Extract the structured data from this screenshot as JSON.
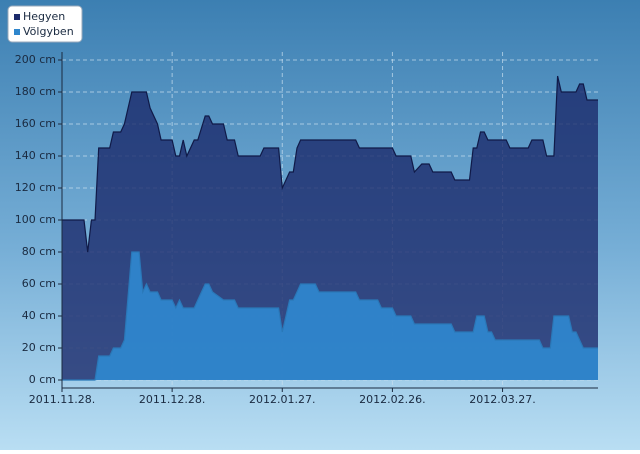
{
  "chart_data": {
    "type": "area",
    "x": [
      "2011.11.28.",
      "2011.12.04.",
      "2011.12.05.",
      "2011.12.06.",
      "2011.12.07.",
      "2011.12.08.",
      "2011.12.11.",
      "2011.12.12.",
      "2011.12.14.",
      "2011.12.15.",
      "2011.12.17.",
      "2011.12.19.",
      "2011.12.20.",
      "2011.12.21.",
      "2011.12.22.",
      "2011.12.24.",
      "2011.12.25.",
      "2011.12.28.",
      "2011.12.29.",
      "2011.12.30.",
      "2011.12.31.",
      "2012.01.01.",
      "2012.01.03.",
      "2012.01.04.",
      "2012.01.06.",
      "2012.01.07.",
      "2012.01.08.",
      "2012.01.11.",
      "2012.01.12.",
      "2012.01.14.",
      "2012.01.15.",
      "2012.01.21.",
      "2012.01.22.",
      "2012.01.26.",
      "2012.01.27.",
      "2012.01.29.",
      "2012.01.30.",
      "2012.01.31.",
      "2012.02.01.",
      "2012.02.05.",
      "2012.02.06.",
      "2012.02.16.",
      "2012.02.17.",
      "2012.02.22.",
      "2012.02.23.",
      "2012.02.26.",
      "2012.02.27.",
      "2012.03.02.",
      "2012.03.03.",
      "2012.03.05.",
      "2012.03.07.",
      "2012.03.08.",
      "2012.03.13.",
      "2012.03.14.",
      "2012.03.18.",
      "2012.03.19.",
      "2012.03.20.",
      "2012.03.21.",
      "2012.03.22.",
      "2012.03.23.",
      "2012.03.24.",
      "2012.03.25.",
      "2012.03.28.",
      "2012.03.29.",
      "2012.04.03.",
      "2012.04.04.",
      "2012.04.06.",
      "2012.04.07.",
      "2012.04.08.",
      "2012.04.09.",
      "2012.04.10.",
      "2012.04.11.",
      "2012.04.12.",
      "2012.04.14.",
      "2012.04.15.",
      "2012.04.16.",
      "2012.04.17.",
      "2012.04.18.",
      "2012.04.19.",
      "2012.04.22."
    ],
    "series": [
      {
        "name": "Hegyen",
        "color": "#1c2a6b",
        "values": [
          100,
          100,
          80,
          100,
          100,
          145,
          145,
          155,
          155,
          160,
          180,
          180,
          180,
          180,
          170,
          160,
          150,
          150,
          140,
          140,
          150,
          140,
          150,
          150,
          165,
          165,
          160,
          160,
          150,
          150,
          140,
          140,
          145,
          145,
          120,
          130,
          130,
          145,
          150,
          150,
          150,
          150,
          145,
          145,
          145,
          145,
          140,
          140,
          130,
          135,
          135,
          130,
          130,
          125,
          125,
          145,
          145,
          155,
          155,
          150,
          150,
          150,
          150,
          145,
          145,
          150,
          150,
          150,
          140,
          140,
          140,
          190,
          180,
          180,
          180,
          180,
          185,
          185,
          175,
          175
        ]
      },
      {
        "name": "Völgyben",
        "color": "#2f86cc",
        "values": [
          0,
          0,
          0,
          0,
          0,
          15,
          15,
          20,
          20,
          25,
          80,
          80,
          55,
          60,
          55,
          55,
          50,
          50,
          45,
          50,
          45,
          45,
          45,
          50,
          60,
          60,
          55,
          50,
          50,
          50,
          45,
          45,
          45,
          45,
          30,
          50,
          50,
          55,
          60,
          60,
          55,
          55,
          50,
          50,
          45,
          45,
          40,
          40,
          35,
          35,
          35,
          35,
          35,
          30,
          30,
          30,
          40,
          40,
          40,
          30,
          30,
          25,
          25,
          25,
          25,
          25,
          25,
          20,
          20,
          20,
          40,
          40,
          40,
          40,
          30,
          30,
          25,
          20,
          20,
          20
        ]
      }
    ],
    "xlim": [
      "2011.11.28.",
      "2012.04.22."
    ],
    "xticks": [
      "2011.11.28.",
      "2011.12.28.",
      "2012.01.27.",
      "2012.02.26.",
      "2012.03.27."
    ],
    "ylim": [
      -5,
      205
    ],
    "yticks": [
      {
        "value": 0,
        "label": "0 cm"
      },
      {
        "value": 20,
        "label": "20 cm"
      },
      {
        "value": 40,
        "label": "40 cm"
      },
      {
        "value": 60,
        "label": "60 cm"
      },
      {
        "value": 80,
        "label": "80 cm"
      },
      {
        "value": 100,
        "label": "100 cm"
      },
      {
        "value": 120,
        "label": "120 cm"
      },
      {
        "value": 140,
        "label": "140 cm"
      },
      {
        "value": 160,
        "label": "160 cm"
      },
      {
        "value": 180,
        "label": "180 cm"
      },
      {
        "value": 200,
        "label": "200 cm"
      }
    ],
    "grid": true,
    "legend": "top-left"
  }
}
